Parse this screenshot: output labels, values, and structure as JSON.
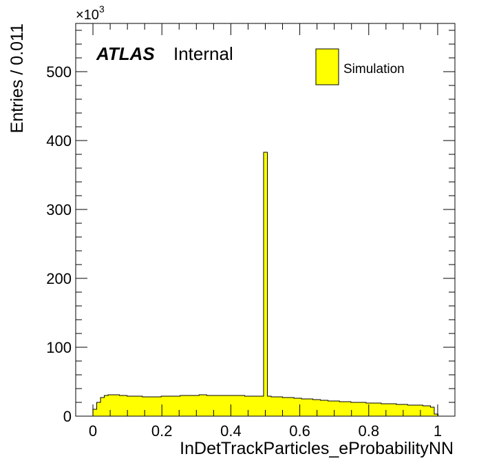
{
  "chart_data": {
    "type": "bar",
    "title": "",
    "xlabel": "InDetTrackParticles_eProbabilityNN",
    "ylabel": "Entries / 0.011",
    "xlim": [
      -0.05,
      1.05
    ],
    "ylim": [
      0,
      570
    ],
    "x_ticks": [
      0,
      0.2,
      0.4,
      0.6,
      0.8,
      1
    ],
    "x_tick_labels": [
      "0",
      "0.2",
      "0.4",
      "0.6",
      "0.8",
      "1"
    ],
    "y_ticks": [
      0,
      100,
      200,
      300,
      400,
      500
    ],
    "y_tick_labels": [
      "0",
      "100",
      "200",
      "300",
      "400",
      "500"
    ],
    "y_multiplier_base": "×10",
    "y_multiplier_exp": "3",
    "label_main": "ATLAS",
    "label_status": "Internal",
    "legend": {
      "placement": "top-right",
      "entries": [
        "Simulation"
      ]
    },
    "fill_color": "#ffff00",
    "edge_color": "#000000",
    "bin_width": 0.011,
    "bin_edges_start": 0.0,
    "series": [
      {
        "name": "Simulation",
        "values": [
          10,
          20,
          27,
          30,
          31,
          31,
          31,
          30,
          30,
          29,
          29,
          29,
          29,
          28,
          28,
          28,
          28,
          28,
          29,
          29,
          29,
          29,
          29,
          30,
          30,
          30,
          30,
          30,
          31,
          31,
          30,
          30,
          30,
          30,
          30,
          30,
          30,
          30,
          30,
          30,
          29,
          29,
          29,
          29,
          29,
          383,
          29,
          28,
          28,
          28,
          27,
          27,
          27,
          26,
          26,
          25,
          25,
          25,
          24,
          24,
          23,
          23,
          22,
          22,
          22,
          21,
          21,
          21,
          20,
          20,
          20,
          20,
          19,
          19,
          19,
          19,
          18,
          18,
          18,
          18,
          17,
          17,
          17,
          16,
          16,
          16,
          16,
          15,
          15,
          13,
          3
        ]
      }
    ]
  }
}
